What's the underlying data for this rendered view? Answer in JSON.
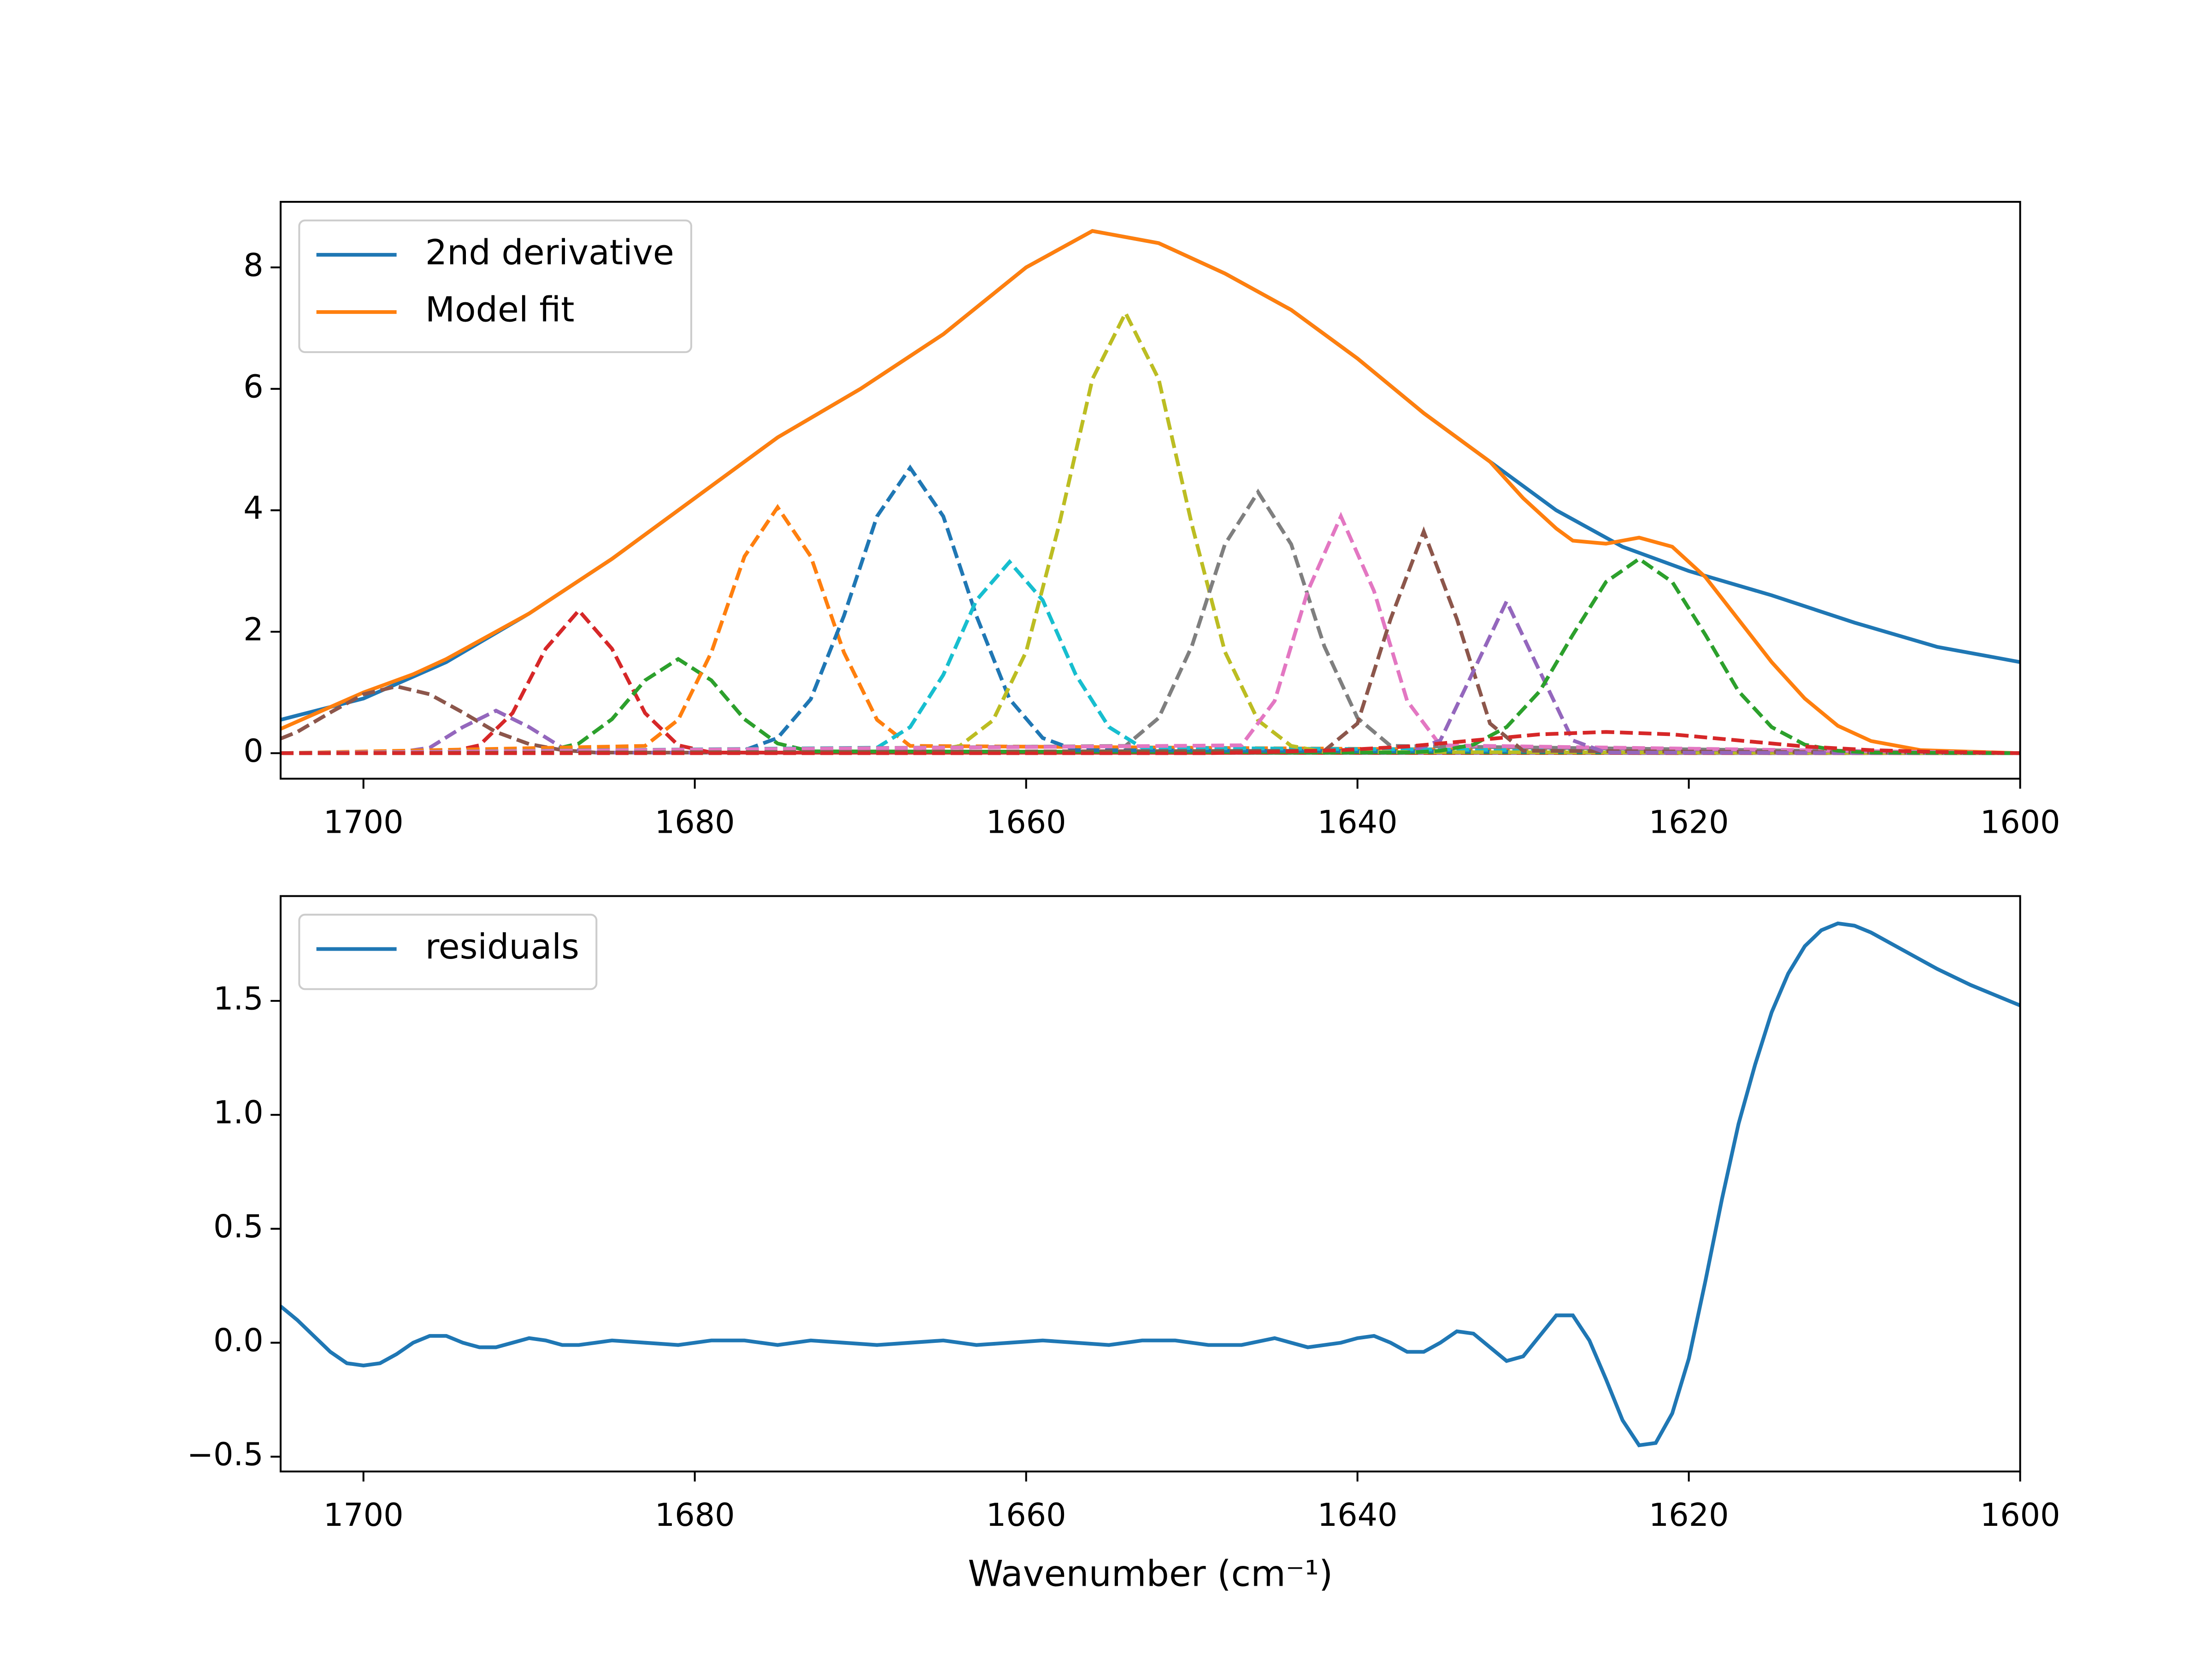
{
  "chart_data": [
    {
      "type": "line",
      "xlim": [
        1705,
        1600
      ],
      "ylim": [
        -0.42,
        9.08
      ],
      "xticks": [
        1700,
        1680,
        1660,
        1640,
        1620,
        1600
      ],
      "yticks": [
        0,
        2,
        4,
        6,
        8
      ],
      "legend": "upper left",
      "series": [
        {
          "name": "2nd derivative",
          "color": "#1f77b4",
          "x": [
            1705,
            1700,
            1695,
            1690,
            1685,
            1680,
            1675,
            1670,
            1665,
            1660,
            1656,
            1652,
            1648,
            1644,
            1640,
            1636,
            1632,
            1628,
            1624,
            1620,
            1615,
            1610,
            1605,
            1600
          ],
          "values": [
            0.55,
            0.9,
            1.5,
            2.3,
            3.2,
            4.2,
            5.2,
            6.0,
            6.9,
            8.0,
            8.6,
            8.4,
            7.9,
            7.3,
            6.5,
            5.6,
            4.8,
            4.0,
            3.4,
            3.0,
            2.6,
            2.15,
            1.75,
            1.5
          ]
        },
        {
          "name": "Model fit",
          "color": "#ff7f0e",
          "x": [
            1705,
            1700,
            1697,
            1695,
            1690,
            1685,
            1680,
            1675,
            1670,
            1665,
            1660,
            1656,
            1652,
            1648,
            1644,
            1640,
            1636,
            1632,
            1630,
            1628,
            1627,
            1625,
            1623,
            1621,
            1619,
            1617,
            1615,
            1613,
            1611,
            1609,
            1606,
            1600
          ],
          "values": [
            0.4,
            1.0,
            1.3,
            1.55,
            2.3,
            3.2,
            4.2,
            5.2,
            6.0,
            6.9,
            8.0,
            8.6,
            8.4,
            7.9,
            7.3,
            6.5,
            5.6,
            4.8,
            4.2,
            3.7,
            3.5,
            3.45,
            3.55,
            3.4,
            2.9,
            2.2,
            1.5,
            0.9,
            0.45,
            0.2,
            0.05,
            0
          ]
        },
        {
          "color": "#8c564b",
          "linestyle": "--",
          "x": [
            1705,
            1704,
            1702,
            1700,
            1698,
            1696,
            1694,
            1692,
            1690,
            1688,
            1686,
            1600
          ],
          "values": [
            0.24,
            0.35,
            0.67,
            0.97,
            1.1,
            0.97,
            0.67,
            0.35,
            0.15,
            0.05,
            0.01,
            0
          ]
        },
        {
          "color": "#9467bd",
          "linestyle": "--",
          "x": [
            1705,
            1698,
            1696,
            1694,
            1692,
            1690,
            1688,
            1686,
            1600
          ],
          "values": [
            0,
            0.01,
            0.09,
            0.43,
            0.7,
            0.43,
            0.09,
            0.01,
            0
          ]
        },
        {
          "color": "#d62728",
          "linestyle": "--",
          "x": [
            1705,
            1695,
            1693,
            1691,
            1689,
            1687,
            1685,
            1683,
            1681,
            1679,
            1600
          ],
          "values": [
            0,
            0.01,
            0.13,
            0.66,
            1.72,
            2.35,
            1.72,
            0.66,
            0.13,
            0.01,
            0
          ]
        },
        {
          "color": "#2ca02c",
          "linestyle": "--",
          "x": [
            1705,
            1689,
            1687,
            1685,
            1683,
            1681,
            1679,
            1677,
            1675,
            1673,
            1600
          ],
          "values": [
            0,
            0.03,
            0.16,
            0.56,
            1.2,
            1.55,
            1.2,
            0.56,
            0.16,
            0.03,
            0
          ]
        },
        {
          "color": "#ff7f0e",
          "linestyle": "--",
          "x": [
            1705,
            1683,
            1681,
            1679,
            1677,
            1675,
            1673,
            1671,
            1669,
            1667,
            1600
          ],
          "values": [
            0,
            0.12,
            0.55,
            1.66,
            3.24,
            4.05,
            3.24,
            1.66,
            0.55,
            0.12,
            0
          ]
        },
        {
          "color": "#1f77b4",
          "linestyle": "--",
          "x": [
            1705,
            1677,
            1675,
            1673,
            1671,
            1669,
            1667,
            1665,
            1663,
            1661,
            1659,
            1657,
            1600
          ],
          "values": [
            0,
            0.05,
            0.25,
            0.89,
            2.26,
            3.9,
            4.7,
            3.9,
            2.26,
            0.89,
            0.25,
            0.05,
            0
          ]
        },
        {
          "color": "#17becf",
          "linestyle": "--",
          "x": [
            1705,
            1669,
            1667,
            1665,
            1663,
            1661,
            1659,
            1657,
            1655,
            1653,
            1600
          ],
          "values": [
            0,
            0.09,
            0.43,
            1.29,
            2.52,
            3.15,
            2.52,
            1.29,
            0.43,
            0.09,
            0
          ]
        },
        {
          "color": "#bcbd22",
          "linestyle": "--",
          "x": [
            1705,
            1666,
            1664,
            1662,
            1660,
            1658,
            1656,
            1654,
            1652,
            1650,
            1648,
            1646,
            1644,
            1642,
            1600
          ],
          "values": [
            0,
            0.02,
            0.12,
            0.54,
            1.67,
            3.77,
            6.16,
            7.25,
            6.16,
            3.77,
            1.67,
            0.54,
            0.12,
            0.02,
            0
          ]
        },
        {
          "color": "#7f7f7f",
          "linestyle": "--",
          "x": [
            1705,
            1654,
            1652,
            1650,
            1648,
            1646,
            1644,
            1642,
            1640,
            1638,
            1600
          ],
          "values": [
            0,
            0.12,
            0.58,
            1.76,
            3.44,
            4.3,
            3.44,
            1.76,
            0.58,
            0.12,
            0
          ]
        },
        {
          "color": "#e377c2",
          "linestyle": "--",
          "x": [
            1705,
            1647,
            1645,
            1643,
            1641,
            1639,
            1637,
            1635,
            1600
          ],
          "values": [
            0,
            0.13,
            0.86,
            2.67,
            3.9,
            2.67,
            0.86,
            0.13,
            0
          ]
        },
        {
          "color": "#8c564b",
          "linestyle": "--",
          "x": [
            1705,
            1642,
            1640,
            1638,
            1636,
            1634,
            1632,
            1630,
            1600
          ],
          "values": [
            0,
            0.04,
            0.49,
            2.21,
            3.65,
            2.21,
            0.49,
            0.04,
            0
          ]
        },
        {
          "color": "#9467bd",
          "linestyle": "--",
          "x": [
            1705,
            1637,
            1635,
            1633,
            1631,
            1629,
            1627,
            1625,
            1600
          ],
          "values": [
            0,
            0.01,
            0.21,
            1.35,
            2.5,
            1.35,
            0.21,
            0.01,
            0
          ]
        },
        {
          "color": "#2ca02c",
          "linestyle": "--",
          "x": [
            1705,
            1637,
            1635,
            1633,
            1631,
            1629,
            1627,
            1625,
            1623,
            1621,
            1619,
            1617,
            1615,
            1613,
            1611,
            1609,
            1600
          ],
          "values": [
            0,
            0.01,
            0.04,
            0.14,
            0.43,
            1.02,
            1.95,
            2.82,
            3.2,
            2.82,
            1.95,
            1.02,
            0.43,
            0.14,
            0.04,
            0.01,
            0
          ]
        },
        {
          "color": "#d62728",
          "linestyle": "--",
          "x": [
            1705,
            1649,
            1645,
            1641,
            1637,
            1633,
            1629,
            1625,
            1621,
            1617,
            1613,
            1609,
            1605,
            1600
          ],
          "values": [
            0,
            0,
            0.02,
            0.05,
            0.11,
            0.21,
            0.31,
            0.35,
            0.31,
            0.21,
            0.11,
            0.05,
            0.02,
            0
          ]
        }
      ]
    },
    {
      "type": "line",
      "xlabel": "Wavenumber (cm⁻¹)",
      "xlim": [
        1705,
        1600
      ],
      "ylim": [
        -0.565,
        1.96
      ],
      "xticks": [
        1700,
        1680,
        1660,
        1640,
        1620,
        1600
      ],
      "yticks": [
        {
          "value": -0.5,
          "label": "−0.5"
        },
        {
          "value": 0,
          "label": "0.0"
        },
        0.5,
        {
          "value": 1,
          "label": "1.0"
        },
        1.5
      ],
      "legend": "upper left",
      "series": [
        {
          "name": "residuals",
          "color": "#1f77b4",
          "x": [
            1705,
            1704,
            1703,
            1702,
            1701,
            1700,
            1699,
            1698,
            1697,
            1696,
            1695,
            1694,
            1693,
            1692,
            1691,
            1690,
            1689,
            1688,
            1687,
            1686,
            1685,
            1683,
            1681,
            1679,
            1677,
            1675,
            1673,
            1671,
            1669,
            1667,
            1665,
            1663,
            1661,
            1659,
            1657,
            1655,
            1653,
            1651,
            1649,
            1647,
            1645,
            1643,
            1641,
            1640,
            1639,
            1638,
            1637,
            1636,
            1635,
            1634,
            1633,
            1632,
            1631,
            1630,
            1629,
            1628,
            1627,
            1626,
            1625,
            1624,
            1623,
            1622,
            1621,
            1620,
            1619,
            1618,
            1617,
            1616,
            1615,
            1614,
            1613,
            1612,
            1611,
            1610,
            1609,
            1607,
            1605,
            1603,
            1601,
            1600
          ],
          "values": [
            0.16,
            0.1,
            0.03,
            -0.04,
            -0.09,
            -0.1,
            -0.09,
            -0.05,
            0.0,
            0.03,
            0.03,
            0.0,
            -0.02,
            -0.02,
            0.0,
            0.02,
            0.01,
            -0.01,
            -0.01,
            0.0,
            0.01,
            0.0,
            -0.01,
            0.01,
            0.01,
            -0.01,
            0.01,
            0.0,
            -0.01,
            0.0,
            0.01,
            -0.01,
            0.0,
            0.01,
            0.0,
            -0.01,
            0.01,
            0.01,
            -0.01,
            -0.01,
            0.02,
            -0.02,
            0.0,
            0.02,
            0.03,
            0.0,
            -0.04,
            -0.04,
            0.0,
            0.05,
            0.04,
            -0.02,
            -0.08,
            -0.06,
            0.03,
            0.12,
            0.12,
            0.01,
            -0.16,
            -0.34,
            -0.45,
            -0.44,
            -0.31,
            -0.07,
            0.27,
            0.63,
            0.96,
            1.22,
            1.45,
            1.62,
            1.74,
            1.81,
            1.84,
            1.83,
            1.8,
            1.72,
            1.64,
            1.57,
            1.51,
            1.48
          ]
        }
      ]
    }
  ]
}
